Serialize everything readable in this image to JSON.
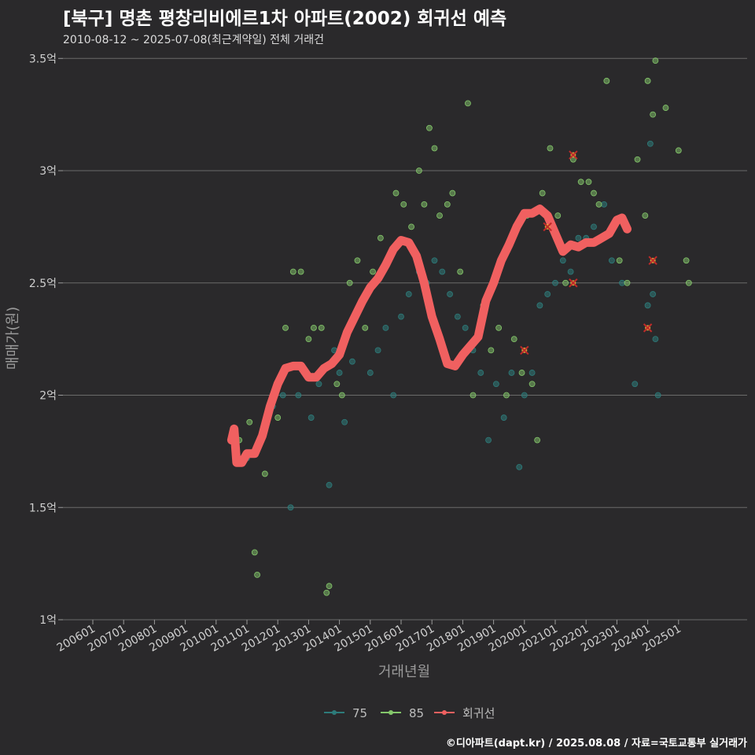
{
  "chart_data": {
    "type": "scatter",
    "title": "[북구] 명촌 평창리비에르1차 아파트(2002) 회귀선 예측",
    "subtitle": "2010-08-12 ~ 2025-07-08(최근계약일) 전체 거래건",
    "xlabel": "거래년월",
    "ylabel": "매매가(원)",
    "caption": "©디아파트(dapt.kr) / 2025.08.08 / 자료=국토교통부 실거래가",
    "x_range": [
      "2006-01",
      "2026-05"
    ],
    "ylim": [
      1.0,
      3.55
    ],
    "y_ticks": [
      1.0,
      1.5,
      2.0,
      2.5,
      3.0,
      3.5
    ],
    "y_tick_labels": [
      "1억",
      "1.5억",
      "2억",
      "2.5억",
      "3억",
      "3.5억"
    ],
    "x_ticks": [
      "2006-01",
      "2007-01",
      "2008-01",
      "2009-01",
      "2010-01",
      "2011-01",
      "2012-01",
      "2013-01",
      "2014-01",
      "2015-01",
      "2016-01",
      "2017-01",
      "2018-01",
      "2019-01",
      "2020-01",
      "2021-01",
      "2022-01",
      "2023-01",
      "2024-01",
      "2025-01"
    ],
    "x_tick_labels": [
      "200601",
      "200701",
      "200801",
      "200901",
      "201001",
      "201101",
      "201201",
      "201301",
      "201401",
      "201501",
      "201601",
      "201701",
      "201801",
      "201901",
      "202001",
      "202101",
      "202201",
      "202301",
      "202401",
      "202501"
    ],
    "grid": "horizontal",
    "legend_position": "bottom",
    "series": [
      {
        "name": "75",
        "color": "#2d7b7a",
        "points": [
          [
            "2011-01",
            1.72
          ],
          [
            "2011-06",
            1.8
          ],
          [
            "2011-11",
            1.95
          ],
          [
            "2012-03",
            2.0
          ],
          [
            "2012-06",
            1.5
          ],
          [
            "2012-09",
            2.0
          ],
          [
            "2013-02",
            1.9
          ],
          [
            "2013-05",
            2.05
          ],
          [
            "2013-09",
            1.6
          ],
          [
            "2013-11",
            2.2
          ],
          [
            "2014-01",
            2.1
          ],
          [
            "2014-03",
            1.88
          ],
          [
            "2014-06",
            2.15
          ],
          [
            "2014-09",
            2.4
          ],
          [
            "2015-01",
            2.1
          ],
          [
            "2015-04",
            2.2
          ],
          [
            "2015-07",
            2.3
          ],
          [
            "2015-10",
            2.0
          ],
          [
            "2016-01",
            2.35
          ],
          [
            "2016-04",
            2.45
          ],
          [
            "2016-08",
            2.55
          ],
          [
            "2016-11",
            2.5
          ],
          [
            "2017-02",
            2.6
          ],
          [
            "2017-05",
            2.55
          ],
          [
            "2017-08",
            2.45
          ],
          [
            "2017-11",
            2.35
          ],
          [
            "2018-02",
            2.3
          ],
          [
            "2018-05",
            2.2
          ],
          [
            "2018-08",
            2.1
          ],
          [
            "2018-11",
            1.8
          ],
          [
            "2019-02",
            2.05
          ],
          [
            "2019-05",
            1.9
          ],
          [
            "2019-08",
            2.1
          ],
          [
            "2019-11",
            1.68
          ],
          [
            "2020-01",
            2.0
          ],
          [
            "2020-04",
            2.1
          ],
          [
            "2020-07",
            2.4
          ],
          [
            "2020-10",
            2.45
          ],
          [
            "2021-01",
            2.5
          ],
          [
            "2021-04",
            2.6
          ],
          [
            "2021-07",
            2.55
          ],
          [
            "2021-10",
            2.7
          ],
          [
            "2022-01",
            2.7
          ],
          [
            "2022-04",
            2.75
          ],
          [
            "2022-08",
            2.85
          ],
          [
            "2022-11",
            2.6
          ],
          [
            "2023-03",
            2.5
          ],
          [
            "2023-08",
            2.05
          ],
          [
            "2024-01",
            2.4
          ],
          [
            "2024-02",
            3.12
          ],
          [
            "2024-03",
            2.45
          ],
          [
            "2024-04",
            2.25
          ],
          [
            "2024-05",
            2.0
          ]
        ]
      },
      {
        "name": "85",
        "color": "#84c76b",
        "points": [
          [
            "2010-10",
            1.8
          ],
          [
            "2011-02",
            1.88
          ],
          [
            "2011-04",
            1.3
          ],
          [
            "2011-05",
            1.2
          ],
          [
            "2011-08",
            1.65
          ],
          [
            "2012-01",
            1.9
          ],
          [
            "2012-04",
            2.3
          ],
          [
            "2012-07",
            2.55
          ],
          [
            "2012-10",
            2.55
          ],
          [
            "2013-01",
            2.25
          ],
          [
            "2013-03",
            2.3
          ],
          [
            "2013-06",
            2.3
          ],
          [
            "2013-08",
            1.12
          ],
          [
            "2013-09",
            1.15
          ],
          [
            "2013-12",
            2.05
          ],
          [
            "2014-02",
            2.0
          ],
          [
            "2014-05",
            2.5
          ],
          [
            "2014-08",
            2.6
          ],
          [
            "2014-11",
            2.3
          ],
          [
            "2015-02",
            2.55
          ],
          [
            "2015-05",
            2.7
          ],
          [
            "2015-08",
            2.6
          ],
          [
            "2015-11",
            2.9
          ],
          [
            "2016-02",
            2.85
          ],
          [
            "2016-05",
            2.75
          ],
          [
            "2016-08",
            3.0
          ],
          [
            "2016-10",
            2.85
          ],
          [
            "2016-12",
            3.19
          ],
          [
            "2017-02",
            3.1
          ],
          [
            "2017-04",
            2.8
          ],
          [
            "2017-07",
            2.85
          ],
          [
            "2017-09",
            2.9
          ],
          [
            "2017-12",
            2.55
          ],
          [
            "2018-03",
            3.3
          ],
          [
            "2018-05",
            2.0
          ],
          [
            "2018-09",
            2.4
          ],
          [
            "2018-12",
            2.2
          ],
          [
            "2019-03",
            2.3
          ],
          [
            "2019-06",
            2.0
          ],
          [
            "2019-09",
            2.25
          ],
          [
            "2019-12",
            2.1
          ],
          [
            "2020-02",
            2.8
          ],
          [
            "2020-04",
            2.05
          ],
          [
            "2020-06",
            1.8
          ],
          [
            "2020-08",
            2.9
          ],
          [
            "2020-11",
            3.1
          ],
          [
            "2021-02",
            2.8
          ],
          [
            "2021-05",
            2.5
          ],
          [
            "2021-08",
            3.05
          ],
          [
            "2021-11",
            2.95
          ],
          [
            "2022-02",
            2.95
          ],
          [
            "2022-04",
            2.9
          ],
          [
            "2022-06",
            2.85
          ],
          [
            "2022-09",
            3.4
          ],
          [
            "2023-02",
            2.6
          ],
          [
            "2023-05",
            2.5
          ],
          [
            "2023-09",
            3.05
          ],
          [
            "2023-12",
            2.8
          ],
          [
            "2024-01",
            3.4
          ],
          [
            "2024-03",
            3.25
          ],
          [
            "2024-04",
            3.49
          ],
          [
            "2024-08",
            3.28
          ],
          [
            "2025-01",
            3.09
          ],
          [
            "2025-04",
            2.6
          ],
          [
            "2025-05",
            2.5
          ]
        ]
      },
      {
        "name": "회귀선",
        "color": "#f06060",
        "points": [
          [
            "2010-07",
            1.8
          ],
          [
            "2010-08",
            1.85
          ],
          [
            "2010-09",
            1.7
          ],
          [
            "2010-11",
            1.7
          ],
          [
            "2011-01",
            1.74
          ],
          [
            "2011-04",
            1.74
          ],
          [
            "2011-07",
            1.82
          ],
          [
            "2011-10",
            1.95
          ],
          [
            "2012-01",
            2.05
          ],
          [
            "2012-04",
            2.12
          ],
          [
            "2012-07",
            2.13
          ],
          [
            "2012-10",
            2.13
          ],
          [
            "2013-01",
            2.08
          ],
          [
            "2013-04",
            2.08
          ],
          [
            "2013-07",
            2.12
          ],
          [
            "2013-10",
            2.14
          ],
          [
            "2014-01",
            2.18
          ],
          [
            "2014-04",
            2.28
          ],
          [
            "2014-07",
            2.35
          ],
          [
            "2014-10",
            2.42
          ],
          [
            "2015-01",
            2.48
          ],
          [
            "2015-04",
            2.52
          ],
          [
            "2015-07",
            2.58
          ],
          [
            "2015-10",
            2.65
          ],
          [
            "2016-01",
            2.69
          ],
          [
            "2016-04",
            2.68
          ],
          [
            "2016-07",
            2.62
          ],
          [
            "2016-10",
            2.5
          ],
          [
            "2017-01",
            2.35
          ],
          [
            "2017-04",
            2.25
          ],
          [
            "2017-07",
            2.14
          ],
          [
            "2017-10",
            2.13
          ],
          [
            "2018-01",
            2.18
          ],
          [
            "2018-04",
            2.22
          ],
          [
            "2018-07",
            2.26
          ],
          [
            "2018-10",
            2.42
          ],
          [
            "2019-01",
            2.5
          ],
          [
            "2019-04",
            2.6
          ],
          [
            "2019-07",
            2.67
          ],
          [
            "2019-10",
            2.75
          ],
          [
            "2020-01",
            2.81
          ],
          [
            "2020-04",
            2.81
          ],
          [
            "2020-07",
            2.83
          ],
          [
            "2020-10",
            2.8
          ],
          [
            "2021-01",
            2.72
          ],
          [
            "2021-04",
            2.64
          ],
          [
            "2021-07",
            2.67
          ],
          [
            "2021-10",
            2.66
          ],
          [
            "2022-01",
            2.68
          ],
          [
            "2022-04",
            2.68
          ],
          [
            "2022-07",
            2.7
          ],
          [
            "2022-10",
            2.72
          ],
          [
            "2023-01",
            2.78
          ],
          [
            "2023-03",
            2.79
          ],
          [
            "2023-05",
            2.74
          ]
        ]
      }
    ],
    "highlighted_points": [
      [
        "2020-01",
        2.2
      ],
      [
        "2020-10",
        2.75
      ],
      [
        "2021-08",
        3.07
      ],
      [
        "2021-08",
        2.5
      ],
      [
        "2024-01",
        2.3
      ],
      [
        "2024-03",
        2.6
      ]
    ]
  }
}
